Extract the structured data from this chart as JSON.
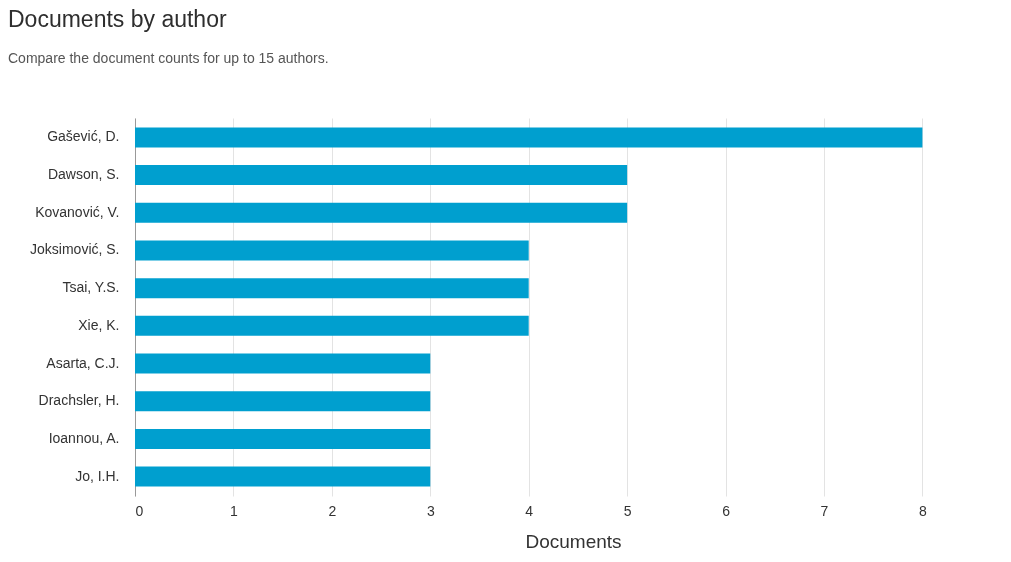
{
  "chart_data": {
    "type": "bar",
    "orientation": "horizontal",
    "title": "Documents by author",
    "subtitle": "Compare the document counts for up to 15 authors.",
    "xlabel": "Documents",
    "categories": [
      "Gašević, D.",
      "Dawson, S.",
      "Kovanović, V.",
      "Joksimović, S.",
      "Tsai, Y.S.",
      "Xie, K.",
      "Asarta, C.J.",
      "Drachsler, H.",
      "Ioannou, A.",
      "Jo, I.H."
    ],
    "values": [
      8,
      5,
      5,
      4,
      4,
      4,
      3,
      3,
      3,
      3
    ],
    "color": "#009fcf",
    "xlim": [
      0,
      8.9
    ],
    "xticks": [
      0,
      1,
      2,
      3,
      4,
      5,
      6,
      7,
      8
    ],
    "grid": "x"
  }
}
